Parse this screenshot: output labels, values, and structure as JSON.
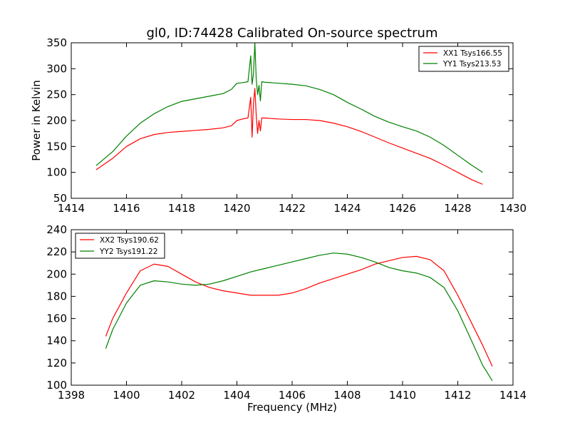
{
  "chart_data": [
    {
      "type": "line",
      "title": "gl0, ID:74428 Calibrated On-source spectrum",
      "xlabel": "",
      "ylabel": "Power in Kelvin",
      "xlim": [
        1414,
        1430
      ],
      "ylim": [
        50,
        350
      ],
      "xticks": [
        1414,
        1416,
        1418,
        1420,
        1422,
        1424,
        1426,
        1428,
        1430
      ],
      "yticks": [
        50,
        100,
        150,
        200,
        250,
        300,
        350
      ],
      "legend_position": "top-right",
      "series": [
        {
          "name": "XX1 Tsys166.55",
          "color": "#ff0000",
          "x": [
            1414.9,
            1415.5,
            1416.0,
            1416.5,
            1417.0,
            1417.5,
            1418.0,
            1418.5,
            1419.0,
            1419.5,
            1419.8,
            1420.0,
            1420.2,
            1420.4,
            1420.5,
            1420.55,
            1420.6,
            1420.65,
            1420.7,
            1420.75,
            1420.8,
            1420.85,
            1420.9,
            1421.0,
            1421.5,
            1422.0,
            1422.5,
            1423.0,
            1423.5,
            1424.0,
            1424.5,
            1425.0,
            1425.5,
            1426.0,
            1426.5,
            1427.0,
            1427.5,
            1428.0,
            1428.5,
            1428.9
          ],
          "y": [
            105,
            127,
            150,
            165,
            173,
            177,
            179,
            181,
            183,
            186,
            190,
            200,
            203,
            205,
            245,
            168,
            233,
            262,
            210,
            175,
            200,
            180,
            205,
            205,
            203,
            202,
            202,
            200,
            195,
            188,
            179,
            168,
            157,
            147,
            137,
            127,
            114,
            100,
            86,
            77
          ]
        },
        {
          "name": "YY1 Tsys213.53",
          "color": "#008000",
          "x": [
            1414.9,
            1415.5,
            1416.0,
            1416.5,
            1417.0,
            1417.5,
            1418.0,
            1418.5,
            1419.0,
            1419.5,
            1419.8,
            1420.0,
            1420.2,
            1420.4,
            1420.5,
            1420.55,
            1420.6,
            1420.65,
            1420.7,
            1420.75,
            1420.8,
            1420.85,
            1420.9,
            1421.0,
            1421.5,
            1422.0,
            1422.5,
            1423.0,
            1423.5,
            1424.0,
            1424.5,
            1425.0,
            1425.5,
            1426.0,
            1426.5,
            1427.0,
            1427.5,
            1428.0,
            1428.5,
            1428.9
          ],
          "y": [
            113,
            140,
            170,
            195,
            213,
            227,
            237,
            242,
            247,
            252,
            260,
            272,
            273,
            275,
            325,
            270,
            290,
            350,
            280,
            250,
            268,
            238,
            275,
            274,
            272,
            270,
            267,
            260,
            250,
            235,
            222,
            208,
            197,
            188,
            180,
            168,
            152,
            133,
            114,
            100
          ]
        }
      ]
    },
    {
      "type": "line",
      "title": "",
      "xlabel": "Frequency (MHz)",
      "ylabel": "",
      "xlim": [
        1398,
        1414
      ],
      "ylim": [
        100,
        240
      ],
      "xticks": [
        1398,
        1400,
        1402,
        1404,
        1406,
        1408,
        1410,
        1412,
        1414
      ],
      "yticks": [
        100,
        120,
        140,
        160,
        180,
        200,
        220,
        240
      ],
      "legend_position": "top-left",
      "series": [
        {
          "name": "XX2 Tsys190.62",
          "color": "#ff0000",
          "x": [
            1399.25,
            1399.5,
            1400.0,
            1400.5,
            1401.0,
            1401.5,
            1402.0,
            1402.5,
            1403.0,
            1403.5,
            1404.0,
            1404.5,
            1405.0,
            1405.5,
            1406.0,
            1406.5,
            1407.0,
            1407.5,
            1408.0,
            1408.5,
            1409.0,
            1409.5,
            1410.0,
            1410.5,
            1411.0,
            1411.5,
            1412.0,
            1412.5,
            1412.9,
            1413.25
          ],
          "y": [
            144,
            160,
            183,
            203,
            209,
            207,
            200,
            193,
            188,
            185,
            183,
            181,
            181,
            181,
            183,
            187,
            192,
            196,
            200,
            204,
            209,
            212,
            215,
            216,
            213,
            203,
            181,
            156,
            136,
            117
          ]
        },
        {
          "name": "YY2 Tsys191.22",
          "color": "#008000",
          "x": [
            1399.25,
            1399.5,
            1400.0,
            1400.5,
            1401.0,
            1401.5,
            1402.0,
            1402.5,
            1403.0,
            1403.5,
            1404.0,
            1404.5,
            1405.0,
            1405.5,
            1406.0,
            1406.5,
            1407.0,
            1407.5,
            1408.0,
            1408.5,
            1409.0,
            1409.5,
            1410.0,
            1410.5,
            1411.0,
            1411.5,
            1412.0,
            1412.5,
            1412.9,
            1413.25
          ],
          "y": [
            133,
            150,
            174,
            190,
            194,
            193,
            191,
            190,
            191,
            194,
            198,
            202,
            205,
            208,
            211,
            214,
            217,
            219,
            218,
            215,
            211,
            206,
            203,
            201,
            197,
            188,
            167,
            140,
            118,
            104
          ]
        }
      ]
    }
  ]
}
